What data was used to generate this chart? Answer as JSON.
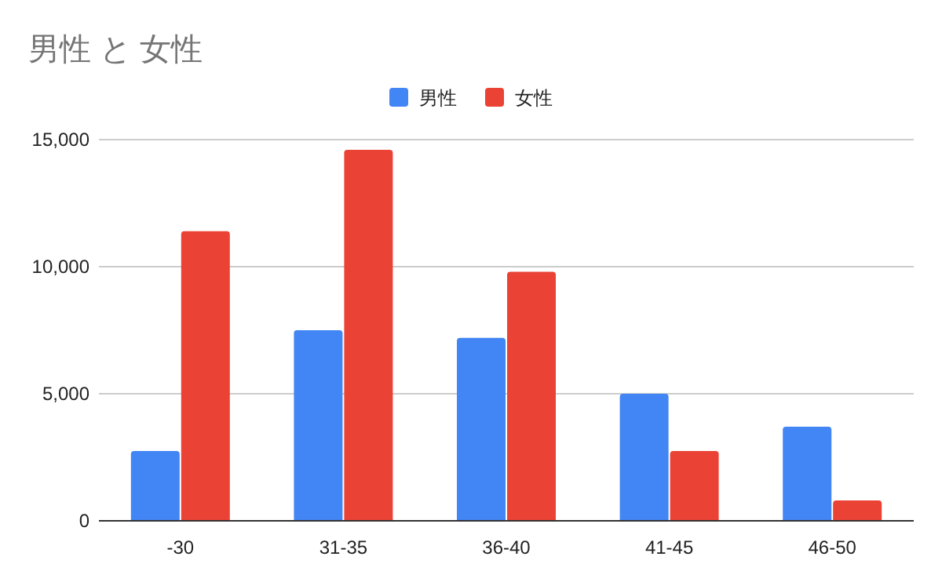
{
  "chart_data": {
    "type": "bar",
    "title": "男性 と 女性",
    "categories": [
      "-30",
      "31-35",
      "36-40",
      "41-45",
      "46-50"
    ],
    "series": [
      {
        "name": "男性",
        "color": "#4285f4",
        "values": [
          2750,
          7500,
          7200,
          5000,
          3700
        ]
      },
      {
        "name": "女性",
        "color": "#ea4335",
        "values": [
          11400,
          14600,
          9800,
          2750,
          800
        ]
      }
    ],
    "ylim": [
      0,
      15000
    ],
    "yticks": [
      {
        "value": 0,
        "label": "0"
      },
      {
        "value": 5000,
        "label": "5,000"
      },
      {
        "value": 10000,
        "label": "10,000"
      },
      {
        "value": 15000,
        "label": "15,000"
      }
    ],
    "grid": "y",
    "legend": "top"
  }
}
